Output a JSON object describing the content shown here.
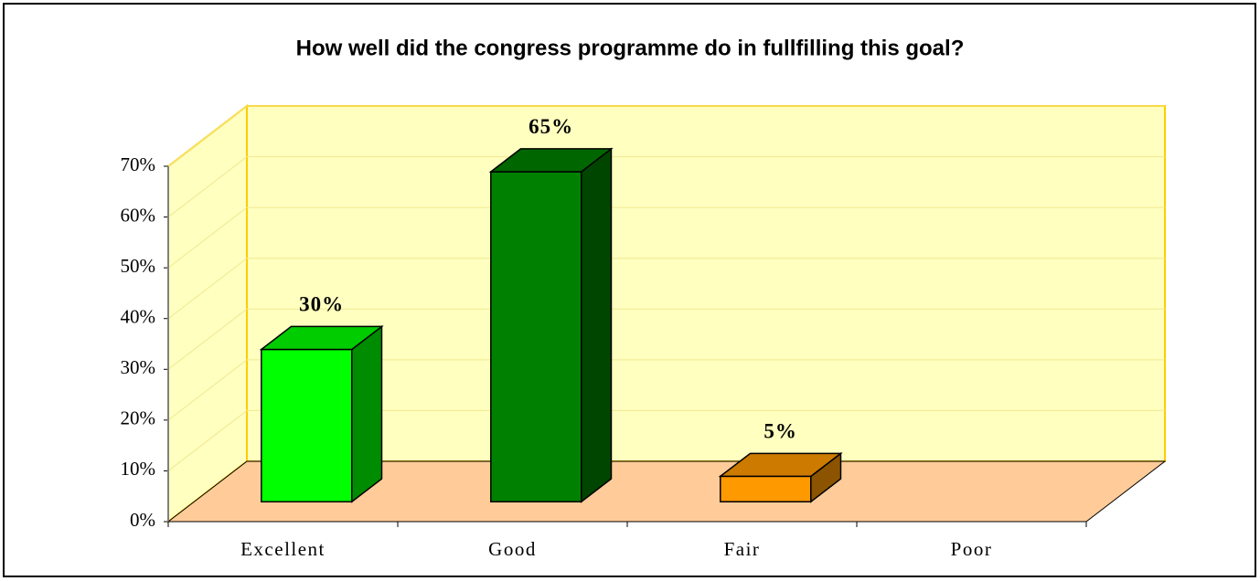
{
  "chart_data": {
    "type": "bar3d",
    "title": "How well did the congress programme do in fullfilling this goal?",
    "categories": [
      "Excellent",
      "Good",
      "Fair",
      "Poor"
    ],
    "values": [
      30,
      65,
      5,
      0
    ],
    "value_labels": [
      "30%",
      "65%",
      "5%",
      null
    ],
    "colors": [
      "#00ff00",
      "#008000",
      "#ff9900",
      "#999999"
    ],
    "ylim": [
      0,
      70
    ],
    "yticks": [
      {
        "value": 0,
        "label": "0%"
      },
      {
        "value": 10,
        "label": "10%"
      },
      {
        "value": 20,
        "label": "20%"
      },
      {
        "value": 30,
        "label": "30%"
      },
      {
        "value": 40,
        "label": "40%"
      },
      {
        "value": 50,
        "label": "50%"
      },
      {
        "value": 60,
        "label": "60%"
      },
      {
        "value": 70,
        "label": "70%"
      }
    ],
    "grid": true
  }
}
